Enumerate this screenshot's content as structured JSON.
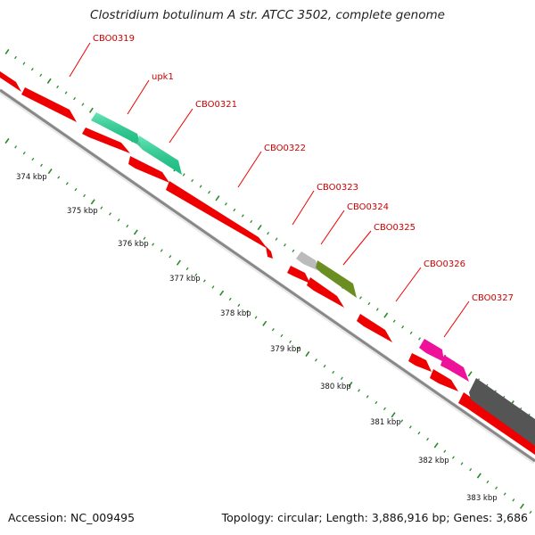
{
  "title": "Clostridium botulinum A str. ATCC 3502, complete genome",
  "footer": {
    "accession": "Accession: NC_009495",
    "topology": "Topology: circular; Length: 3,886,916 bp; Genes: 3,686"
  },
  "gene_labels": [
    "CBO0319",
    "upk1",
    "CBO0321",
    "CBO0322",
    "CBO0323",
    "CBO0324",
    "CBO0325",
    "CBO0326",
    "CBO0327"
  ],
  "scale_labels": [
    "374 kbp",
    "375 kbp",
    "376 kbp",
    "377 kbp",
    "378 kbp",
    "379 kbp",
    "380 kbp",
    "381 kbp",
    "382 kbp",
    "383 kbp"
  ],
  "colors": {
    "cds_red": "#ee0000",
    "rna_green": "#22dd99",
    "gray_feature": "#bbbbbb",
    "olive_feature": "#6b8e23",
    "pink_feature": "#ee1199",
    "dark_feature": "#555555",
    "backbone": "#888888",
    "tick_green": "#2a8a2a",
    "label_red": "#cc0000"
  }
}
